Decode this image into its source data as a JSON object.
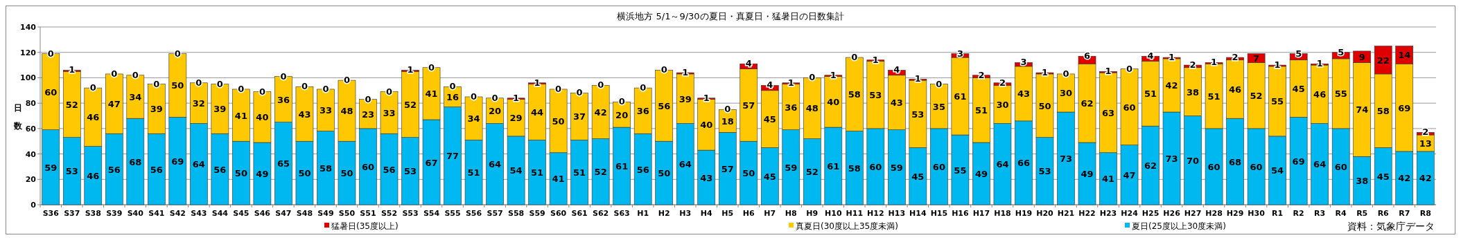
{
  "chart_data": {
    "type": "bar",
    "stacked": true,
    "title": "横浜地方 5/1～9/30の夏日・真夏日・猛暑日の日数集計",
    "ylabel": "日数",
    "categories": [
      "S36",
      "S37",
      "S38",
      "S39",
      "S40",
      "S41",
      "S42",
      "S43",
      "S44",
      "S45",
      "S46",
      "S47",
      "S48",
      "S49",
      "S50",
      "S51",
      "S52",
      "S53",
      "S54",
      "S55",
      "S56",
      "S57",
      "S58",
      "S59",
      "S60",
      "S61",
      "S62",
      "S63",
      "H1",
      "H2",
      "H3",
      "H4",
      "H5",
      "H6",
      "H7",
      "H8",
      "H9",
      "H10",
      "H11",
      "H12",
      "H13",
      "H14",
      "H15",
      "H16",
      "H17",
      "H18",
      "H19",
      "H20",
      "H21",
      "H22",
      "H23",
      "H24",
      "H25",
      "H26",
      "H27",
      "H28",
      "H29",
      "H30",
      "R1",
      "R2",
      "R3",
      "R4",
      "R5",
      "R6",
      "R7",
      "R8"
    ],
    "series": [
      {
        "name": "夏日(25度以上30度未満)",
        "color": "#00b8f0",
        "values": [
          59,
          53,
          46,
          56,
          68,
          56,
          69,
          64,
          56,
          50,
          49,
          65,
          50,
          58,
          50,
          60,
          56,
          53,
          67,
          77,
          51,
          64,
          54,
          51,
          41,
          51,
          52,
          61,
          56,
          50,
          64,
          43,
          57,
          50,
          45,
          59,
          52,
          61,
          58,
          60,
          59,
          45,
          60,
          55,
          49,
          64,
          66,
          53,
          73,
          49,
          41,
          47,
          62,
          73,
          70,
          60,
          68,
          60,
          54,
          69,
          64,
          60,
          38,
          45,
          42,
          42
        ]
      },
      {
        "name": "真夏日(30度以上35度未満)",
        "color": "#ffc800",
        "values": [
          60,
          52,
          46,
          47,
          34,
          39,
          50,
          32,
          39,
          41,
          40,
          36,
          43,
          33,
          48,
          23,
          33,
          52,
          41,
          16,
          34,
          20,
          29,
          44,
          50,
          37,
          42,
          20,
          36,
          56,
          39,
          40,
          18,
          57,
          45,
          36,
          48,
          40,
          58,
          53,
          43,
          53,
          35,
          61,
          51,
          30,
          43,
          50,
          30,
          62,
          63,
          60,
          51,
          42,
          38,
          51,
          46,
          52,
          55,
          45,
          46,
          55,
          74,
          58,
          69,
          13
        ]
      },
      {
        "name": "猛暑日(35度以上)",
        "color": "#e00000",
        "values": [
          0,
          1,
          0,
          0,
          0,
          0,
          0,
          0,
          0,
          0,
          0,
          0,
          0,
          0,
          0,
          0,
          0,
          1,
          0,
          0,
          0,
          0,
          1,
          1,
          0,
          0,
          0,
          0,
          0,
          0,
          1,
          1,
          0,
          4,
          4,
          1,
          0,
          1,
          0,
          1,
          4,
          1,
          0,
          3,
          2,
          2,
          3,
          1,
          0,
          6,
          1,
          0,
          4,
          1,
          2,
          1,
          2,
          7,
          1,
          5,
          1,
          5,
          9,
          22,
          14,
          2
        ]
      }
    ],
    "ylim": [
      0,
      140
    ],
    "yticks": [
      0,
      20,
      40,
      60,
      80,
      100,
      120,
      140
    ],
    "grid": "y",
    "data_labels": true,
    "legend": "bottom",
    "annotations": [
      "資料：気象庁データ"
    ]
  }
}
